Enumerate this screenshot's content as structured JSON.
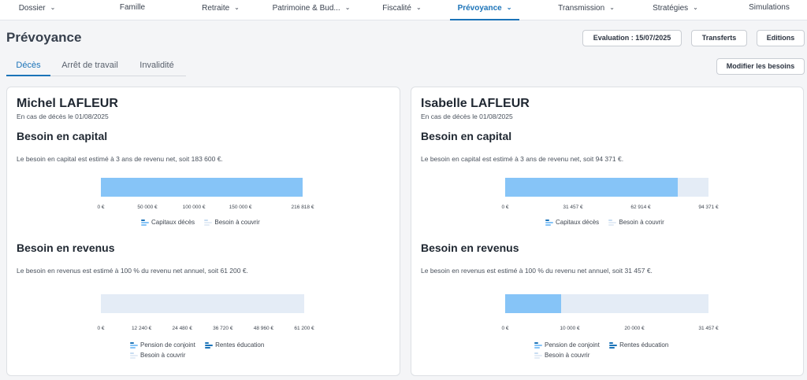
{
  "nav": {
    "items": [
      {
        "label": "Dossier",
        "chevron": true
      },
      {
        "label": "Famille",
        "chevron": false
      },
      {
        "label": "Retraite",
        "chevron": true
      },
      {
        "label": "Patrimoine & Bud...",
        "chevron": true
      },
      {
        "label": "Fiscalité",
        "chevron": true
      },
      {
        "label": "Prévoyance",
        "chevron": true,
        "active": true
      },
      {
        "label": "Transmission",
        "chevron": true
      },
      {
        "label": "Stratégies",
        "chevron": true
      },
      {
        "label": "Simulations",
        "chevron": false
      }
    ]
  },
  "page": {
    "title": "Prévoyance"
  },
  "actions": {
    "evaluation": "Evaluation : 15/07/2025",
    "transferts": "Transferts",
    "editions": "Editions",
    "modifier": "Modifier les besoins"
  },
  "tabs": {
    "deces": "Décès",
    "arret": "Arrêt de travail",
    "invalidite": "Invalidité",
    "active": "deces"
  },
  "colors": {
    "accent": "#1b73b8",
    "fill": "#86c4f7",
    "track": "#e4ecf6",
    "icon_dark": "#1b73b8",
    "icon_light": "#86c4f7",
    "icon_pale": "#d6e6f6"
  },
  "persons": [
    {
      "name": "Michel LAFLEUR",
      "subtitle": "En cas de décès le 01/08/2025",
      "capital": {
        "title": "Besoin en capital",
        "text": "Le besoin en capital est estimé à 3 ans de revenu net, soit 183 600 €.",
        "axis_max": 216818,
        "ticks": [
          "0 €",
          "50 000 €",
          "100 000 €",
          "150 000 €",
          "216 818 €"
        ],
        "tick_values": [
          0,
          50000,
          100000,
          150000,
          216818
        ],
        "covered": 216818,
        "need": 183600,
        "legend": [
          "Capitaux décès",
          "Besoin à couvrir"
        ]
      },
      "revenus": {
        "title": "Besoin en revenus",
        "text": "Le besoin en revenus est estimé à 100 % du revenu net annuel, soit 61 200 €.",
        "axis_max": 61200,
        "ticks": [
          "0 €",
          "12 240 €",
          "24 480 €",
          "36 720 €",
          "48 960 €",
          "61 200 €"
        ],
        "tick_values": [
          0,
          12240,
          24480,
          36720,
          48960,
          61200
        ],
        "covered": 0,
        "need": 61200,
        "legend": [
          "Pension de conjoint",
          "Rentes éducation",
          "Besoin à couvrir"
        ]
      }
    },
    {
      "name": "Isabelle LAFLEUR",
      "subtitle": "En cas de décès le 01/08/2025",
      "capital": {
        "title": "Besoin en capital",
        "text": "Le besoin en capital est estimé à 3 ans de revenu net, soit 94 371 €.",
        "axis_max": 94371,
        "ticks": [
          "0 €",
          "31 457 €",
          "62 914 €",
          "94 371 €"
        ],
        "tick_values": [
          0,
          31457,
          62914,
          94371
        ],
        "covered": 80000,
        "need": 94371,
        "legend": [
          "Capitaux décès",
          "Besoin à couvrir"
        ]
      },
      "revenus": {
        "title": "Besoin en revenus",
        "text": "Le besoin en revenus est estimé à 100 % du revenu net annuel, soit 31 457 €.",
        "axis_max": 31457,
        "ticks": [
          "0 €",
          "10 000 €",
          "20 000 €",
          "31 457 €"
        ],
        "tick_values": [
          0,
          10000,
          20000,
          31457
        ],
        "covered": 8600,
        "need": 31457,
        "legend": [
          "Pension de conjoint",
          "Rentes éducation",
          "Besoin à couvrir"
        ]
      }
    }
  ]
}
